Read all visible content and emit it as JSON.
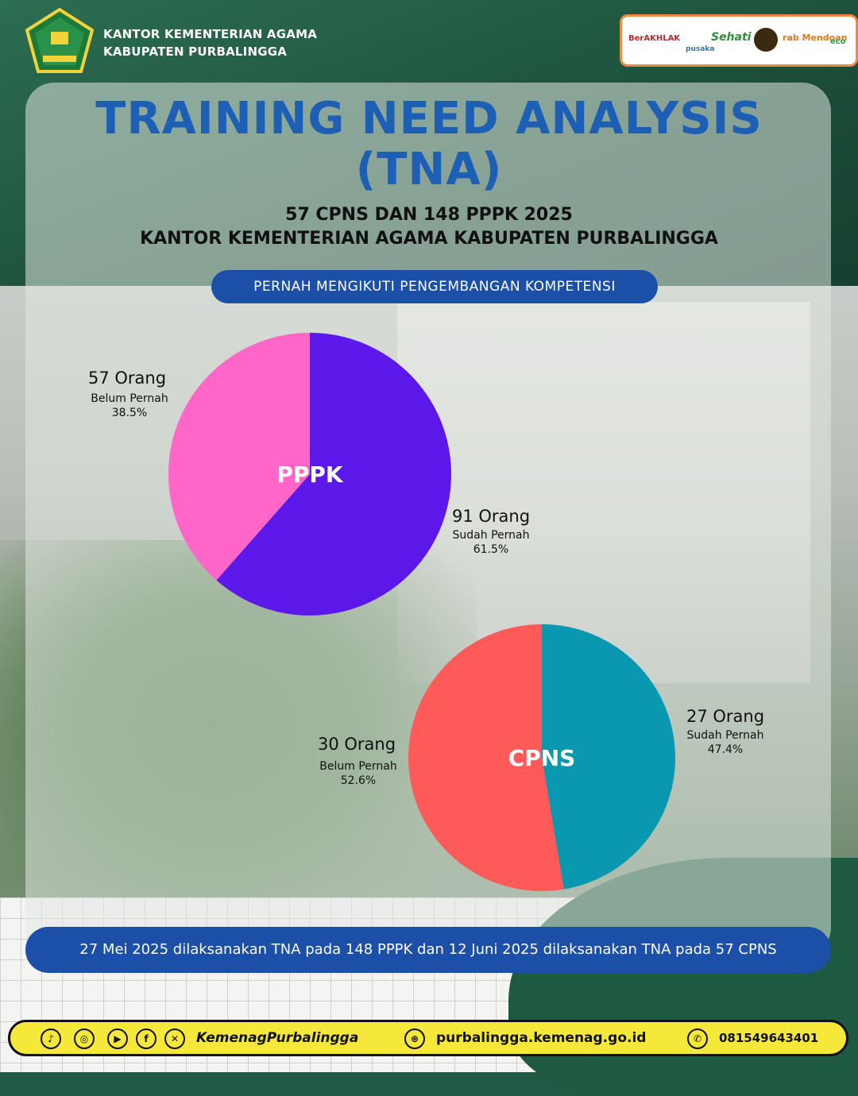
{
  "header": {
    "office_line1": "KANTOR KEMENTERIAN AGAMA",
    "office_line2": "KABUPATEN PURBALINGGA",
    "badges": [
      "BerAKHLAK",
      "pusaka",
      "Sehati",
      "rab Mendoan",
      "eco"
    ]
  },
  "title": {
    "line1": "TRAINING NEED ANALYSIS",
    "line2": "(TNA)"
  },
  "subtitle": {
    "line1": "57 CPNS DAN 148 PPPK 2025",
    "line2": "KANTOR KEMENTERIAN AGAMA KABUPATEN PURBALINGGA"
  },
  "pill": "PERNAH MENGIKUTI PENGEMBANGAN KOMPETENSI",
  "chart_data": [
    {
      "type": "pie",
      "title": "PPPK",
      "slices": [
        {
          "label": "Sudah Pernah",
          "count": "91 Orang",
          "value": 91,
          "percent": "61.5%",
          "color": "#5b18e8"
        },
        {
          "label": "Belum Pernah",
          "count": "57 Orang",
          "value": 57,
          "percent": "38.5%",
          "color": "#ff66c8"
        }
      ]
    },
    {
      "type": "pie",
      "title": "CPNS",
      "slices": [
        {
          "label": "Sudah Pernah",
          "count": "27 Orang",
          "value": 27,
          "percent": "47.4%",
          "color": "#0a97b0"
        },
        {
          "label": "Belum Pernah",
          "count": "30 Orang",
          "value": 30,
          "percent": "52.6%",
          "color": "#ff5a5a"
        }
      ]
    }
  ],
  "footer_note": "27 Mei 2025 dilaksanakan TNA pada 148 PPPK dan 12 Juni 2025 dilaksanakan TNA pada 57 CPNS",
  "contact": {
    "handle": "KemenagPurbalingga",
    "website": "purbalingga.kemenag.go.id",
    "phone": "081549643401"
  }
}
